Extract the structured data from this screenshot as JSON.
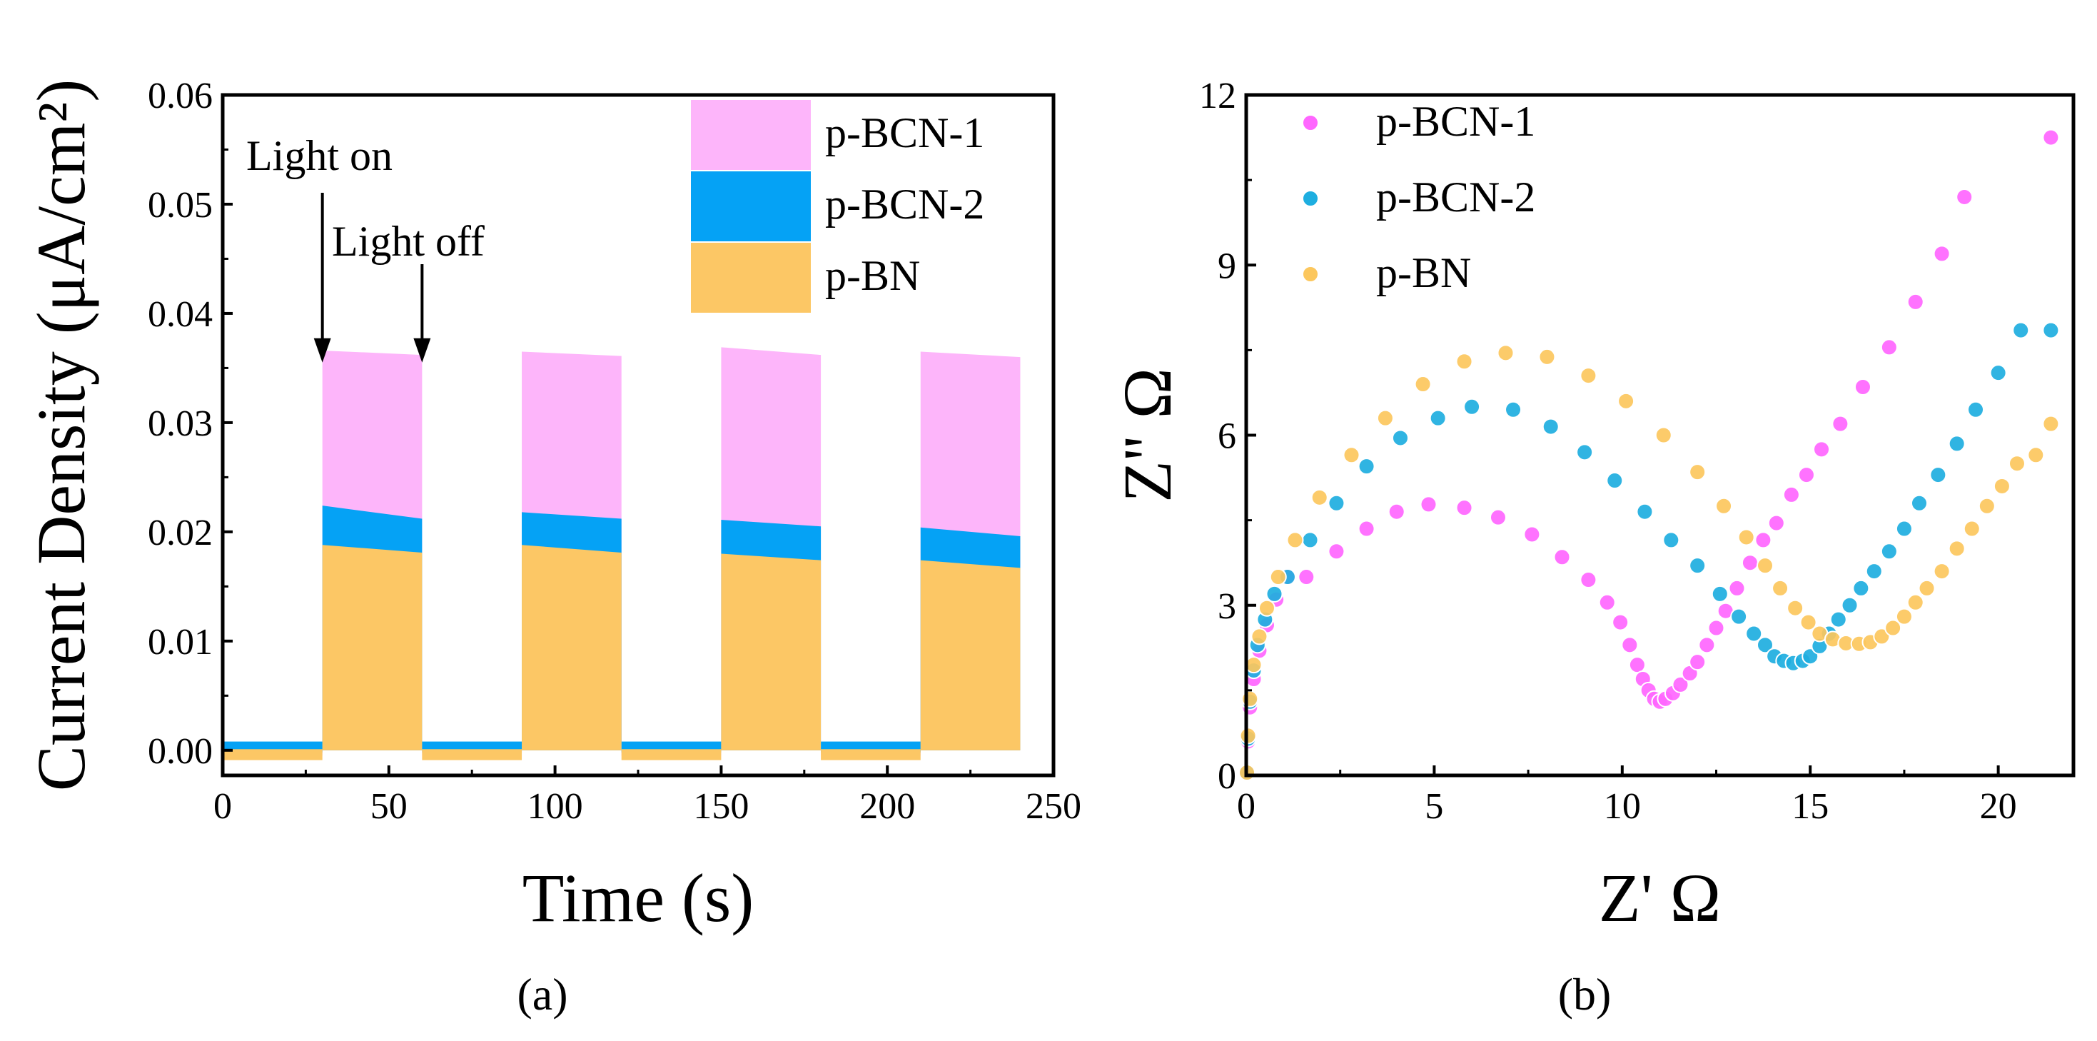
{
  "colors": {
    "p_bcn_1": "#ff66ff",
    "p_bcn_2": "#1eaee0",
    "p_bn": "#fcc75d",
    "p_bcn_1_fill": "#fdb5fa",
    "p_bcn_2_fill": "#05a2f5",
    "p_bn_fill": "#fcc765",
    "axis": "#000000"
  },
  "chart_data": [
    {
      "type": "area",
      "panel_label": "(a)",
      "xlabel": "Time (s)",
      "ylabel": "Current Density (μA/cm²)",
      "xlim": [
        0,
        250
      ],
      "ylim": [
        -0.0023,
        0.06
      ],
      "xticks": [
        "0",
        "50",
        "100",
        "150",
        "200",
        "250"
      ],
      "yticks": [
        "0.00",
        "0.01",
        "0.02",
        "0.03",
        "0.04",
        "0.05",
        "0.06"
      ],
      "grid": false,
      "legend_position": "top-right",
      "annotations": [
        {
          "text": "Light on",
          "x": 30,
          "y_arrow_tip": 0.0355
        },
        {
          "text": "Light off",
          "x": 60,
          "y_arrow_tip": 0.0355
        }
      ],
      "light_on_intervals": [
        [
          30,
          60
        ],
        [
          90,
          120
        ],
        [
          150,
          180
        ],
        [
          210,
          240
        ]
      ],
      "series": [
        {
          "name": "p-BCN-1",
          "on_start": [
            0.0366,
            0.0365,
            0.0369,
            0.0365
          ],
          "on_end": [
            0.0362,
            0.0361,
            0.0362,
            0.036
          ],
          "off_level": 0.0001
        },
        {
          "name": "p-BCN-2",
          "on_start": [
            0.0224,
            0.0218,
            0.0211,
            0.0204
          ],
          "on_end": [
            0.0212,
            0.0212,
            0.0205,
            0.0196
          ],
          "off_level": 0.0004
        },
        {
          "name": "p-BN",
          "on_start": [
            0.0188,
            0.0188,
            0.018,
            0.0174
          ],
          "on_end": [
            0.0181,
            0.0181,
            0.0174,
            0.0167
          ],
          "off_level": -0.0003
        }
      ]
    },
    {
      "type": "scatter",
      "panel_label": "(b)",
      "xlabel": "Z' Ω",
      "ylabel": "Z'' Ω",
      "xlim": [
        0,
        22
      ],
      "ylim": [
        0,
        12
      ],
      "xticks": [
        "0",
        "5",
        "10",
        "15",
        "20"
      ],
      "yticks": [
        "0",
        "3",
        "6",
        "9",
        "12"
      ],
      "grid": false,
      "legend_position": "top-left",
      "series": [
        {
          "name": "p-BCN-1",
          "points": [
            [
              0.02,
              0.05
            ],
            [
              0.05,
              0.6
            ],
            [
              0.1,
              1.2
            ],
            [
              0.2,
              1.7
            ],
            [
              0.35,
              2.2
            ],
            [
              0.55,
              2.65
            ],
            [
              0.8,
              3.1
            ],
            [
              1.1,
              3.5
            ],
            [
              1.6,
              3.5
            ],
            [
              2.4,
              3.95
            ],
            [
              3.2,
              4.35
            ],
            [
              4.0,
              4.65
            ],
            [
              4.85,
              4.78
            ],
            [
              5.8,
              4.72
            ],
            [
              6.7,
              4.55
            ],
            [
              7.6,
              4.25
            ],
            [
              8.4,
              3.85
            ],
            [
              9.1,
              3.45
            ],
            [
              9.6,
              3.05
            ],
            [
              9.95,
              2.7
            ],
            [
              10.2,
              2.3
            ],
            [
              10.4,
              1.95
            ],
            [
              10.55,
              1.7
            ],
            [
              10.7,
              1.5
            ],
            [
              10.85,
              1.35
            ],
            [
              11.0,
              1.3
            ],
            [
              11.15,
              1.35
            ],
            [
              11.35,
              1.45
            ],
            [
              11.55,
              1.6
            ],
            [
              11.8,
              1.8
            ],
            [
              12.0,
              2.0
            ],
            [
              12.25,
              2.3
            ],
            [
              12.5,
              2.6
            ],
            [
              12.75,
              2.9
            ],
            [
              13.05,
              3.3
            ],
            [
              13.4,
              3.75
            ],
            [
              13.75,
              4.15
            ],
            [
              14.1,
              4.45
            ],
            [
              14.5,
              4.95
            ],
            [
              14.9,
              5.3
            ],
            [
              15.3,
              5.75
            ],
            [
              15.8,
              6.2
            ],
            [
              16.4,
              6.85
            ],
            [
              17.1,
              7.55
            ],
            [
              17.8,
              8.35
            ],
            [
              18.5,
              9.2
            ],
            [
              19.1,
              10.2
            ],
            [
              21.4,
              11.25
            ]
          ]
        },
        {
          "name": "p-BCN-2",
          "points": [
            [
              0.02,
              0.05
            ],
            [
              0.05,
              0.65
            ],
            [
              0.1,
              1.3
            ],
            [
              0.2,
              1.85
            ],
            [
              0.3,
              2.3
            ],
            [
              0.5,
              2.75
            ],
            [
              0.75,
              3.2
            ],
            [
              1.1,
              3.5
            ],
            [
              1.7,
              4.15
            ],
            [
              2.4,
              4.8
            ],
            [
              3.2,
              5.45
            ],
            [
              4.1,
              5.95
            ],
            [
              5.1,
              6.3
            ],
            [
              6.0,
              6.5
            ],
            [
              7.1,
              6.45
            ],
            [
              8.1,
              6.15
            ],
            [
              9.0,
              5.7
            ],
            [
              9.8,
              5.2
            ],
            [
              10.6,
              4.65
            ],
            [
              11.3,
              4.15
            ],
            [
              12.0,
              3.7
            ],
            [
              12.6,
              3.2
            ],
            [
              13.1,
              2.8
            ],
            [
              13.5,
              2.5
            ],
            [
              13.8,
              2.3
            ],
            [
              14.05,
              2.1
            ],
            [
              14.3,
              2.02
            ],
            [
              14.55,
              1.98
            ],
            [
              14.8,
              2.02
            ],
            [
              15.0,
              2.1
            ],
            [
              15.25,
              2.28
            ],
            [
              15.5,
              2.5
            ],
            [
              15.75,
              2.75
            ],
            [
              16.05,
              3.0
            ],
            [
              16.35,
              3.3
            ],
            [
              16.7,
              3.6
            ],
            [
              17.1,
              3.95
            ],
            [
              17.5,
              4.35
            ],
            [
              17.9,
              4.8
            ],
            [
              18.4,
              5.3
            ],
            [
              18.9,
              5.85
            ],
            [
              19.4,
              6.45
            ],
            [
              20.0,
              7.1
            ],
            [
              20.6,
              7.85
            ],
            [
              21.4,
              7.85
            ]
          ]
        },
        {
          "name": "p-BN",
          "points": [
            [
              0.02,
              0.05
            ],
            [
              0.05,
              0.7
            ],
            [
              0.1,
              1.35
            ],
            [
              0.2,
              1.95
            ],
            [
              0.35,
              2.45
            ],
            [
              0.55,
              2.95
            ],
            [
              0.85,
              3.5
            ],
            [
              1.3,
              4.15
            ],
            [
              1.95,
              4.9
            ],
            [
              2.8,
              5.65
            ],
            [
              3.7,
              6.3
            ],
            [
              4.7,
              6.9
            ],
            [
              5.8,
              7.3
            ],
            [
              6.9,
              7.45
            ],
            [
              8.0,
              7.38
            ],
            [
              9.1,
              7.05
            ],
            [
              10.1,
              6.6
            ],
            [
              11.1,
              6.0
            ],
            [
              12.0,
              5.35
            ],
            [
              12.7,
              4.75
            ],
            [
              13.3,
              4.2
            ],
            [
              13.8,
              3.7
            ],
            [
              14.2,
              3.3
            ],
            [
              14.6,
              2.95
            ],
            [
              14.95,
              2.7
            ],
            [
              15.25,
              2.5
            ],
            [
              15.6,
              2.4
            ],
            [
              15.95,
              2.33
            ],
            [
              16.3,
              2.32
            ],
            [
              16.6,
              2.35
            ],
            [
              16.9,
              2.45
            ],
            [
              17.2,
              2.6
            ],
            [
              17.5,
              2.8
            ],
            [
              17.8,
              3.05
            ],
            [
              18.1,
              3.3
            ],
            [
              18.5,
              3.6
            ],
            [
              18.9,
              4.0
            ],
            [
              19.3,
              4.35
            ],
            [
              19.7,
              4.75
            ],
            [
              20.1,
              5.1
            ],
            [
              20.5,
              5.5
            ],
            [
              21.0,
              5.65
            ],
            [
              21.4,
              6.2
            ]
          ]
        }
      ]
    }
  ]
}
